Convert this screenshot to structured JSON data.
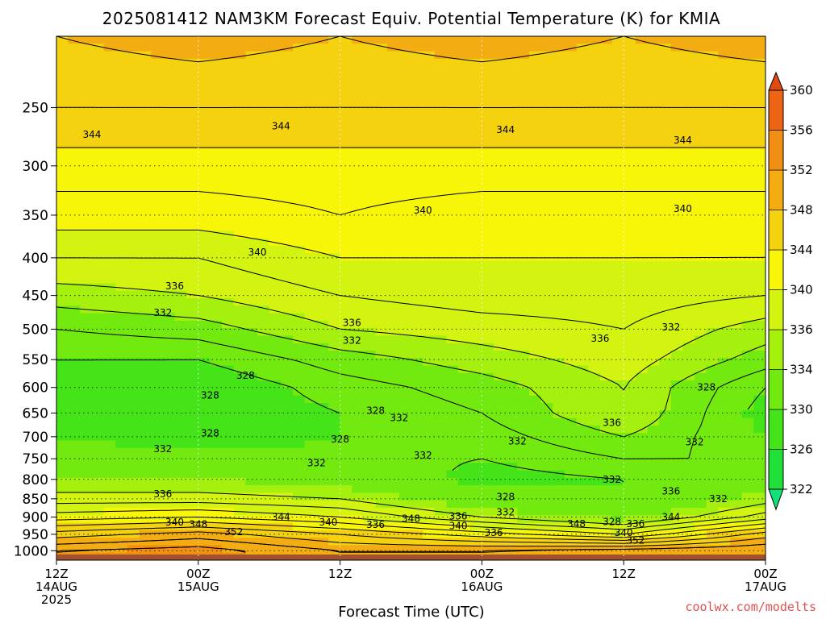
{
  "chart_data": {
    "type": "heatmap",
    "title": "2025081412 NAM3KM Forecast Equiv. Potential Temperature (K) for KMIA",
    "xlabel": "Forecast Time (UTC)",
    "ylabel": "",
    "x_ticks": [
      {
        "hour": 0,
        "lines": [
          "12Z",
          "14AUG",
          "2025"
        ]
      },
      {
        "hour": 12,
        "lines": [
          "00Z",
          "15AUG"
        ]
      },
      {
        "hour": 24,
        "lines": [
          "12Z"
        ]
      },
      {
        "hour": 36,
        "lines": [
          "00Z",
          "16AUG"
        ]
      },
      {
        "hour": 48,
        "lines": [
          "12Z"
        ]
      },
      {
        "hour": 60,
        "lines": [
          "00Z",
          "17AUG"
        ]
      }
    ],
    "xlim_hours": [
      0,
      60
    ],
    "y_axis": {
      "scale": "log-pressure",
      "units": "hPa",
      "ticks": [
        250,
        300,
        350,
        400,
        450,
        500,
        550,
        600,
        650,
        700,
        750,
        800,
        850,
        900,
        950,
        1000
      ],
      "ylim": [
        200,
        1030
      ]
    },
    "grid": true,
    "colorbar": {
      "placement": "right",
      "levels": [
        322,
        326,
        330,
        334,
        336,
        340,
        344,
        348,
        352,
        356,
        360
      ],
      "colors": [
        "#12e07a",
        "#22e03a",
        "#44e418",
        "#72ea10",
        "#a6f010",
        "#d2f410",
        "#f7f508",
        "#f5d210",
        "#f3ac12",
        "#f18e14",
        "#ec6414",
        "#e24a10"
      ]
    },
    "profiles": [
      {
        "hour": 0,
        "p": [
          200,
          250,
          300,
          350,
          400,
          450,
          500,
          550,
          600,
          650,
          700,
          750,
          800,
          850,
          900,
          950,
          1000
        ],
        "theta_e": [
          348,
          346,
          343,
          341,
          338,
          335,
          332,
          330,
          329,
          329,
          330,
          332,
          334,
          337,
          341,
          347,
          352
        ]
      },
      {
        "hour": 12,
        "p": [
          200,
          250,
          300,
          350,
          400,
          450,
          500,
          550,
          600,
          650,
          700,
          750,
          800,
          850,
          900,
          950,
          1000
        ],
        "theta_e": [
          349,
          346,
          343,
          341,
          338,
          336,
          333,
          330,
          328,
          328,
          328,
          331,
          334,
          337,
          342,
          349,
          353
        ]
      },
      {
        "hour": 24,
        "p": [
          200,
          250,
          300,
          350,
          400,
          450,
          500,
          550,
          600,
          650,
          700,
          750,
          800,
          850,
          900,
          950,
          1000
        ],
        "theta_e": [
          348,
          346,
          343,
          342,
          340,
          338,
          336,
          333,
          331,
          330,
          330,
          331,
          333,
          336,
          340,
          346,
          350
        ]
      },
      {
        "hour": 36,
        "p": [
          200,
          250,
          300,
          350,
          400,
          450,
          500,
          550,
          600,
          650,
          700,
          750,
          800,
          850,
          900,
          950,
          1000
        ],
        "theta_e": [
          349,
          346,
          343,
          341,
          340,
          339,
          337,
          335,
          333,
          332,
          331,
          330,
          329,
          332,
          336,
          343,
          350
        ]
      },
      {
        "hour": 48,
        "p": [
          200,
          250,
          300,
          350,
          400,
          450,
          500,
          550,
          600,
          650,
          700,
          750,
          800,
          850,
          900,
          950,
          1000
        ],
        "theta_e": [
          348,
          346,
          343,
          341,
          340,
          339,
          338,
          337,
          336,
          336,
          334,
          332,
          330,
          330,
          333,
          340,
          351
        ]
      },
      {
        "hour": 60,
        "p": [
          200,
          250,
          300,
          350,
          400,
          450,
          500,
          550,
          600,
          650,
          700,
          750,
          800,
          850,
          900,
          950,
          1000
        ],
        "theta_e": [
          349,
          346,
          343,
          341,
          340,
          338,
          335,
          333,
          330,
          329,
          330,
          332,
          333,
          335,
          339,
          347,
          352
        ]
      }
    ],
    "contour_labels": [
      {
        "hour": 3,
        "p": 272,
        "text": "344"
      },
      {
        "hour": 19,
        "p": 265,
        "text": "344"
      },
      {
        "hour": 38,
        "p": 268,
        "text": "344"
      },
      {
        "hour": 53,
        "p": 277,
        "text": "344"
      },
      {
        "hour": 31,
        "p": 345,
        "text": "340"
      },
      {
        "hour": 53,
        "p": 343,
        "text": "340"
      },
      {
        "hour": 17,
        "p": 393,
        "text": "340"
      },
      {
        "hour": 10,
        "p": 437,
        "text": "336"
      },
      {
        "hour": 25,
        "p": 490,
        "text": "336"
      },
      {
        "hour": 46,
        "p": 515,
        "text": "336"
      },
      {
        "hour": 47,
        "p": 670,
        "text": "336"
      },
      {
        "hour": 52,
        "p": 830,
        "text": "336"
      },
      {
        "hour": 9,
        "p": 838,
        "text": "336"
      },
      {
        "hour": 9,
        "p": 475,
        "text": "332"
      },
      {
        "hour": 25,
        "p": 518,
        "text": "332"
      },
      {
        "hour": 29,
        "p": 660,
        "text": "332"
      },
      {
        "hour": 52,
        "p": 497,
        "text": "332"
      },
      {
        "hour": 39,
        "p": 710,
        "text": "332"
      },
      {
        "hour": 54,
        "p": 712,
        "text": "332"
      },
      {
        "hour": 9,
        "p": 727,
        "text": "332"
      },
      {
        "hour": 22,
        "p": 760,
        "text": "332"
      },
      {
        "hour": 31,
        "p": 742,
        "text": "332"
      },
      {
        "hour": 47,
        "p": 800,
        "text": "332"
      },
      {
        "hour": 56,
        "p": 850,
        "text": "332"
      },
      {
        "hour": 16,
        "p": 578,
        "text": "328"
      },
      {
        "hour": 13,
        "p": 615,
        "text": "328"
      },
      {
        "hour": 27,
        "p": 645,
        "text": "328"
      },
      {
        "hour": 13,
        "p": 692,
        "text": "328"
      },
      {
        "hour": 24,
        "p": 706,
        "text": "328"
      },
      {
        "hour": 55,
        "p": 600,
        "text": "328"
      },
      {
        "hour": 38,
        "p": 845,
        "text": "328"
      },
      {
        "hour": 38,
        "p": 887,
        "text": "332"
      },
      {
        "hour": 19,
        "p": 900,
        "text": "344"
      },
      {
        "hour": 10,
        "p": 915,
        "text": "340"
      },
      {
        "hour": 12,
        "p": 921,
        "text": "348"
      },
      {
        "hour": 15,
        "p": 943,
        "text": "352"
      },
      {
        "hour": 23,
        "p": 915,
        "text": "340"
      },
      {
        "hour": 27,
        "p": 922,
        "text": "336"
      },
      {
        "hour": 30,
        "p": 905,
        "text": "348"
      },
      {
        "hour": 34,
        "p": 898,
        "text": "336"
      },
      {
        "hour": 34,
        "p": 925,
        "text": "340"
      },
      {
        "hour": 37,
        "p": 945,
        "text": "336"
      },
      {
        "hour": 44,
        "p": 920,
        "text": "348"
      },
      {
        "hour": 47,
        "p": 914,
        "text": "328"
      },
      {
        "hour": 48,
        "p": 945,
        "text": "340"
      },
      {
        "hour": 49,
        "p": 920,
        "text": "336"
      },
      {
        "hour": 52,
        "p": 900,
        "text": "344"
      },
      {
        "hour": 49,
        "p": 968,
        "text": "352"
      }
    ]
  },
  "credit": "coolwx.com/modelts"
}
